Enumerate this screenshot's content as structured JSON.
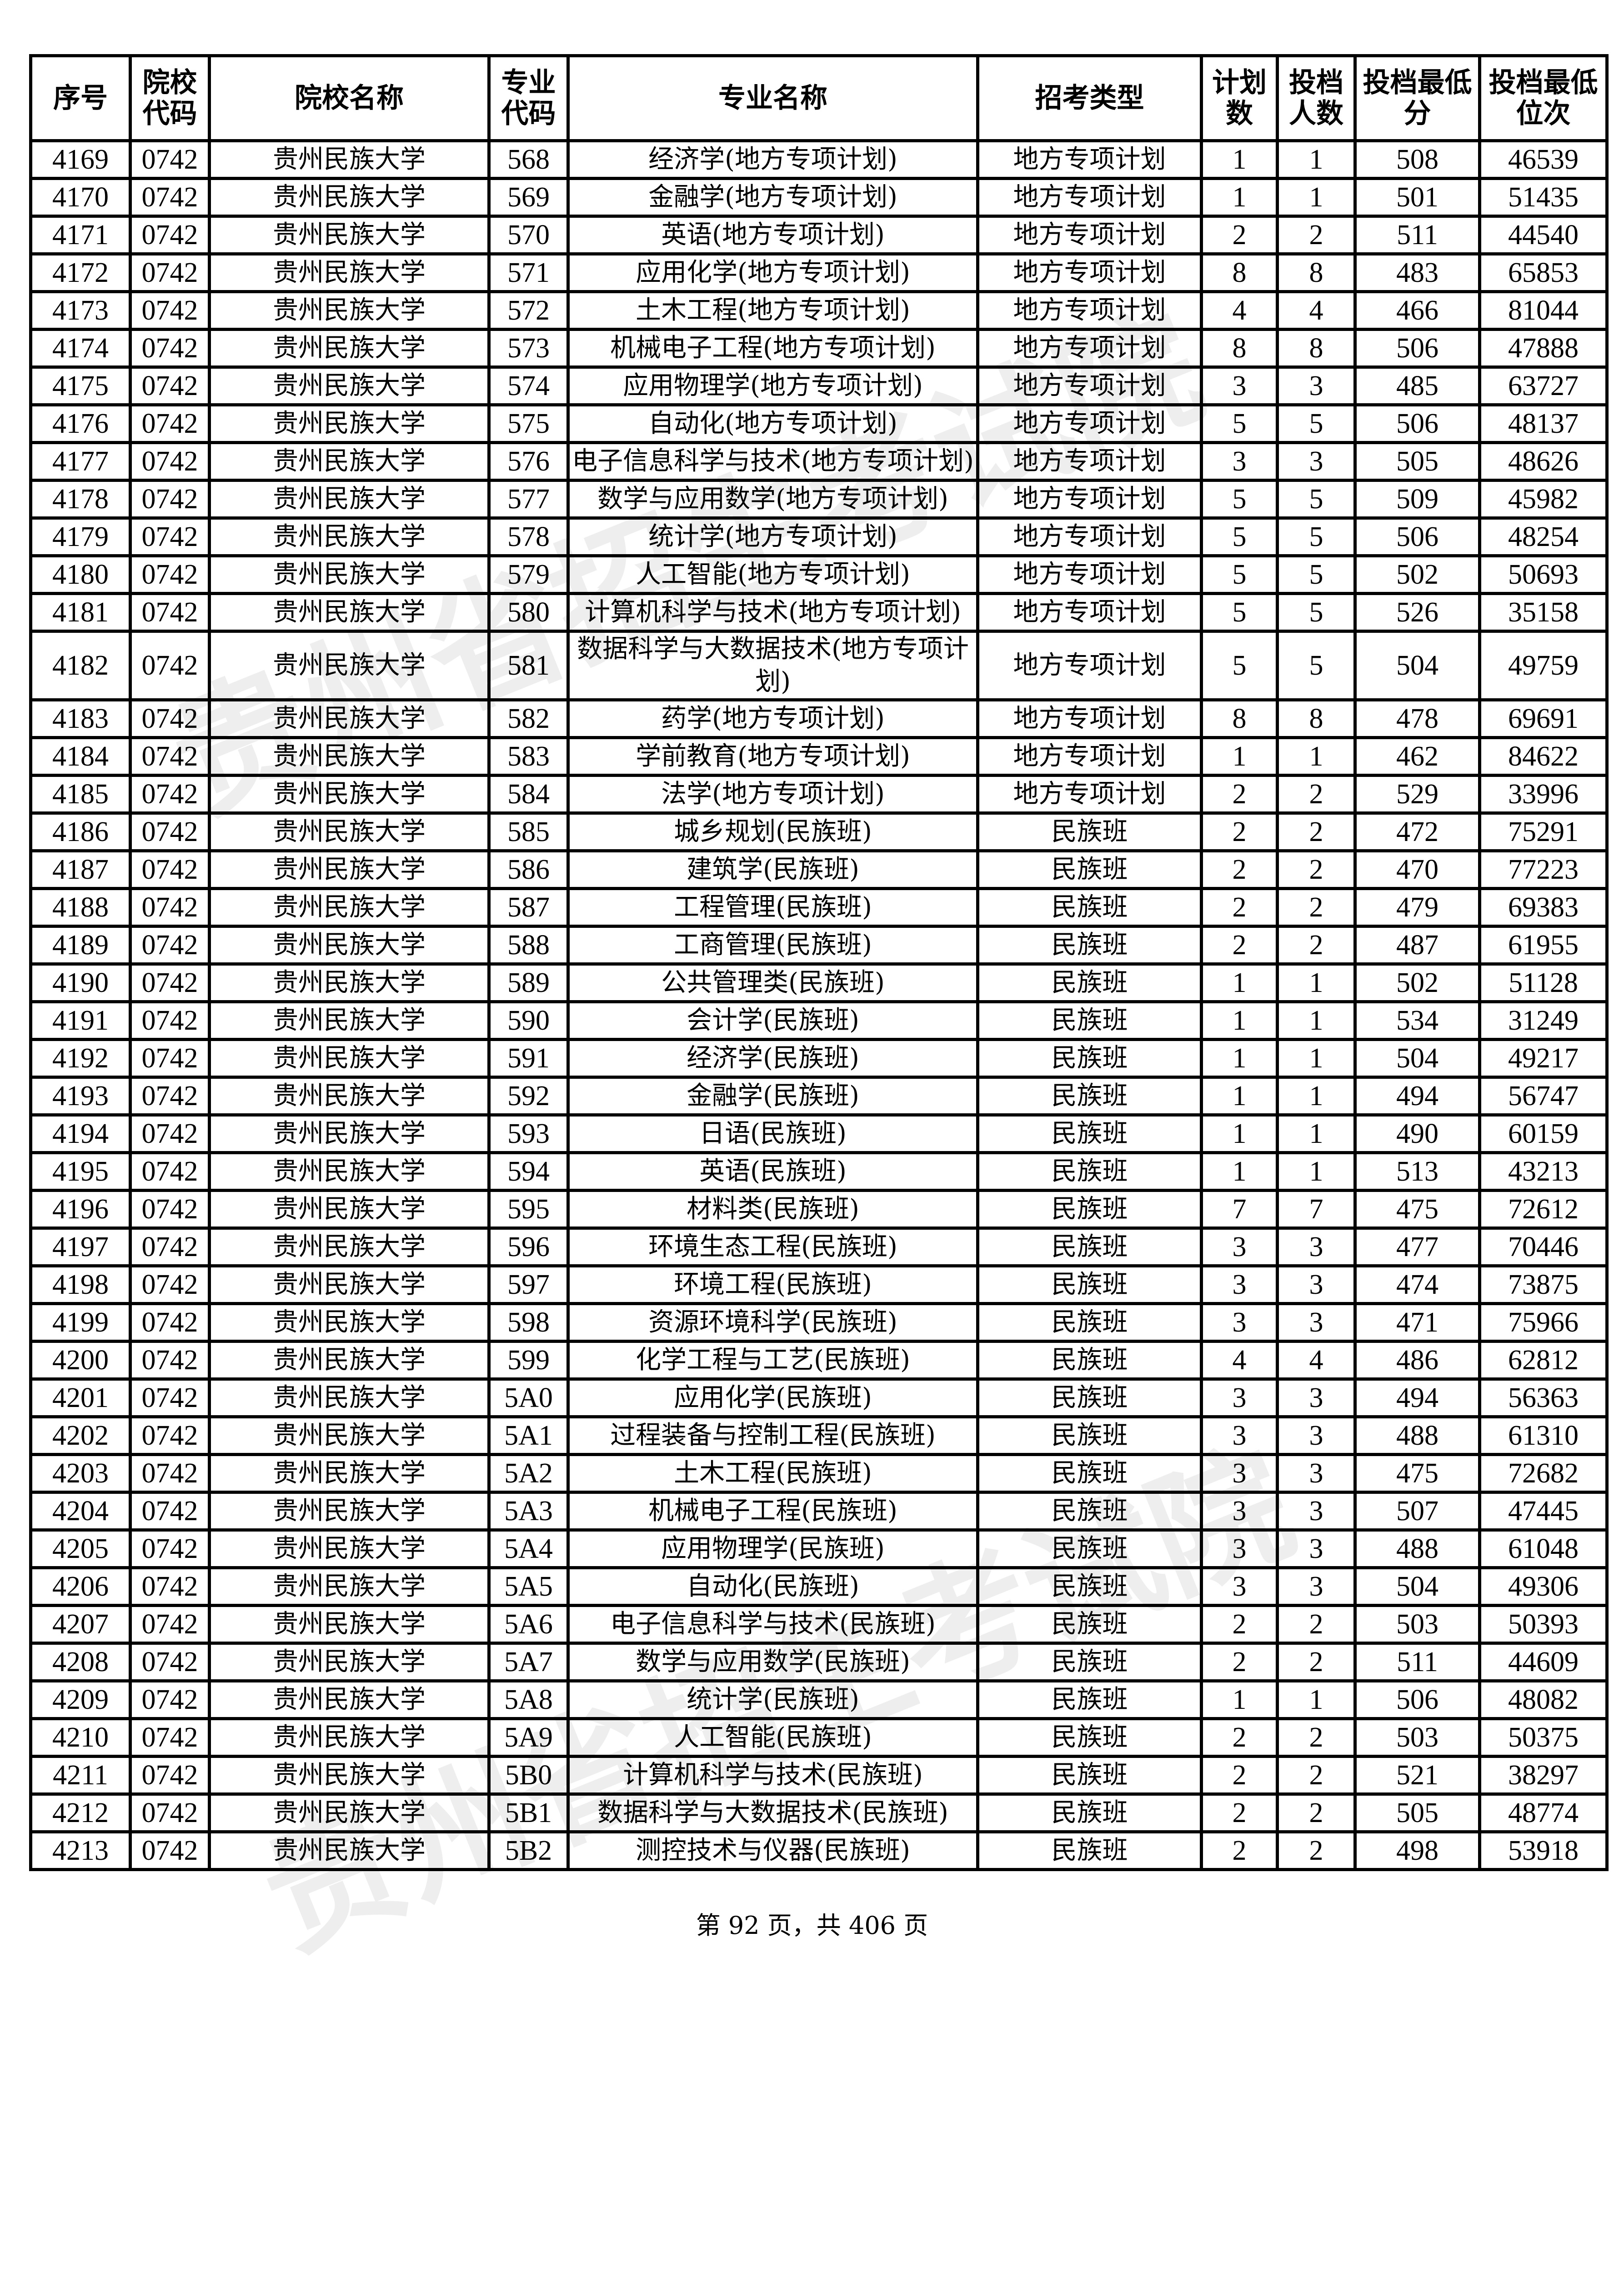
{
  "table": {
    "headers": [
      "序号",
      "院校代码",
      "院校名称",
      "专业代码",
      "专业名称",
      "招考类型",
      "计划数",
      "投档人数",
      "投档最低分",
      "投档最低位次"
    ],
    "rows": [
      [
        "4169",
        "0742",
        "贵州民族大学",
        "568",
        "经济学(地方专项计划)",
        "地方专项计划",
        "1",
        "1",
        "508",
        "46539"
      ],
      [
        "4170",
        "0742",
        "贵州民族大学",
        "569",
        "金融学(地方专项计划)",
        "地方专项计划",
        "1",
        "1",
        "501",
        "51435"
      ],
      [
        "4171",
        "0742",
        "贵州民族大学",
        "570",
        "英语(地方专项计划)",
        "地方专项计划",
        "2",
        "2",
        "511",
        "44540"
      ],
      [
        "4172",
        "0742",
        "贵州民族大学",
        "571",
        "应用化学(地方专项计划)",
        "地方专项计划",
        "8",
        "8",
        "483",
        "65853"
      ],
      [
        "4173",
        "0742",
        "贵州民族大学",
        "572",
        "土木工程(地方专项计划)",
        "地方专项计划",
        "4",
        "4",
        "466",
        "81044"
      ],
      [
        "4174",
        "0742",
        "贵州民族大学",
        "573",
        "机械电子工程(地方专项计划)",
        "地方专项计划",
        "8",
        "8",
        "506",
        "47888"
      ],
      [
        "4175",
        "0742",
        "贵州民族大学",
        "574",
        "应用物理学(地方专项计划)",
        "地方专项计划",
        "3",
        "3",
        "485",
        "63727"
      ],
      [
        "4176",
        "0742",
        "贵州民族大学",
        "575",
        "自动化(地方专项计划)",
        "地方专项计划",
        "5",
        "5",
        "506",
        "48137"
      ],
      [
        "4177",
        "0742",
        "贵州民族大学",
        "576",
        "电子信息科学与技术(地方专项计划)",
        "地方专项计划",
        "3",
        "3",
        "505",
        "48626"
      ],
      [
        "4178",
        "0742",
        "贵州民族大学",
        "577",
        "数学与应用数学(地方专项计划)",
        "地方专项计划",
        "5",
        "5",
        "509",
        "45982"
      ],
      [
        "4179",
        "0742",
        "贵州民族大学",
        "578",
        "统计学(地方专项计划)",
        "地方专项计划",
        "5",
        "5",
        "506",
        "48254"
      ],
      [
        "4180",
        "0742",
        "贵州民族大学",
        "579",
        "人工智能(地方专项计划)",
        "地方专项计划",
        "5",
        "5",
        "502",
        "50693"
      ],
      [
        "4181",
        "0742",
        "贵州民族大学",
        "580",
        "计算机科学与技术(地方专项计划)",
        "地方专项计划",
        "5",
        "5",
        "526",
        "35158"
      ],
      [
        "4182",
        "0742",
        "贵州民族大学",
        "581",
        "数据科学与大数据技术(地方专项计划)",
        "地方专项计划",
        "5",
        "5",
        "504",
        "49759"
      ],
      [
        "4183",
        "0742",
        "贵州民族大学",
        "582",
        "药学(地方专项计划)",
        "地方专项计划",
        "8",
        "8",
        "478",
        "69691"
      ],
      [
        "4184",
        "0742",
        "贵州民族大学",
        "583",
        "学前教育(地方专项计划)",
        "地方专项计划",
        "1",
        "1",
        "462",
        "84622"
      ],
      [
        "4185",
        "0742",
        "贵州民族大学",
        "584",
        "法学(地方专项计划)",
        "地方专项计划",
        "2",
        "2",
        "529",
        "33996"
      ],
      [
        "4186",
        "0742",
        "贵州民族大学",
        "585",
        "城乡规划(民族班)",
        "民族班",
        "2",
        "2",
        "472",
        "75291"
      ],
      [
        "4187",
        "0742",
        "贵州民族大学",
        "586",
        "建筑学(民族班)",
        "民族班",
        "2",
        "2",
        "470",
        "77223"
      ],
      [
        "4188",
        "0742",
        "贵州民族大学",
        "587",
        "工程管理(民族班)",
        "民族班",
        "2",
        "2",
        "479",
        "69383"
      ],
      [
        "4189",
        "0742",
        "贵州民族大学",
        "588",
        "工商管理(民族班)",
        "民族班",
        "2",
        "2",
        "487",
        "61955"
      ],
      [
        "4190",
        "0742",
        "贵州民族大学",
        "589",
        "公共管理类(民族班)",
        "民族班",
        "1",
        "1",
        "502",
        "51128"
      ],
      [
        "4191",
        "0742",
        "贵州民族大学",
        "590",
        "会计学(民族班)",
        "民族班",
        "1",
        "1",
        "534",
        "31249"
      ],
      [
        "4192",
        "0742",
        "贵州民族大学",
        "591",
        "经济学(民族班)",
        "民族班",
        "1",
        "1",
        "504",
        "49217"
      ],
      [
        "4193",
        "0742",
        "贵州民族大学",
        "592",
        "金融学(民族班)",
        "民族班",
        "1",
        "1",
        "494",
        "56747"
      ],
      [
        "4194",
        "0742",
        "贵州民族大学",
        "593",
        "日语(民族班)",
        "民族班",
        "1",
        "1",
        "490",
        "60159"
      ],
      [
        "4195",
        "0742",
        "贵州民族大学",
        "594",
        "英语(民族班)",
        "民族班",
        "1",
        "1",
        "513",
        "43213"
      ],
      [
        "4196",
        "0742",
        "贵州民族大学",
        "595",
        "材料类(民族班)",
        "民族班",
        "7",
        "7",
        "475",
        "72612"
      ],
      [
        "4197",
        "0742",
        "贵州民族大学",
        "596",
        "环境生态工程(民族班)",
        "民族班",
        "3",
        "3",
        "477",
        "70446"
      ],
      [
        "4198",
        "0742",
        "贵州民族大学",
        "597",
        "环境工程(民族班)",
        "民族班",
        "3",
        "3",
        "474",
        "73875"
      ],
      [
        "4199",
        "0742",
        "贵州民族大学",
        "598",
        "资源环境科学(民族班)",
        "民族班",
        "3",
        "3",
        "471",
        "75966"
      ],
      [
        "4200",
        "0742",
        "贵州民族大学",
        "599",
        "化学工程与工艺(民族班)",
        "民族班",
        "4",
        "4",
        "486",
        "62812"
      ],
      [
        "4201",
        "0742",
        "贵州民族大学",
        "5A0",
        "应用化学(民族班)",
        "民族班",
        "3",
        "3",
        "494",
        "56363"
      ],
      [
        "4202",
        "0742",
        "贵州民族大学",
        "5A1",
        "过程装备与控制工程(民族班)",
        "民族班",
        "3",
        "3",
        "488",
        "61310"
      ],
      [
        "4203",
        "0742",
        "贵州民族大学",
        "5A2",
        "土木工程(民族班)",
        "民族班",
        "3",
        "3",
        "475",
        "72682"
      ],
      [
        "4204",
        "0742",
        "贵州民族大学",
        "5A3",
        "机械电子工程(民族班)",
        "民族班",
        "3",
        "3",
        "507",
        "47445"
      ],
      [
        "4205",
        "0742",
        "贵州民族大学",
        "5A4",
        "应用物理学(民族班)",
        "民族班",
        "3",
        "3",
        "488",
        "61048"
      ],
      [
        "4206",
        "0742",
        "贵州民族大学",
        "5A5",
        "自动化(民族班)",
        "民族班",
        "3",
        "3",
        "504",
        "49306"
      ],
      [
        "4207",
        "0742",
        "贵州民族大学",
        "5A6",
        "电子信息科学与技术(民族班)",
        "民族班",
        "2",
        "2",
        "503",
        "50393"
      ],
      [
        "4208",
        "0742",
        "贵州民族大学",
        "5A7",
        "数学与应用数学(民族班)",
        "民族班",
        "2",
        "2",
        "511",
        "44609"
      ],
      [
        "4209",
        "0742",
        "贵州民族大学",
        "5A8",
        "统计学(民族班)",
        "民族班",
        "1",
        "1",
        "506",
        "48082"
      ],
      [
        "4210",
        "0742",
        "贵州民族大学",
        "5A9",
        "人工智能(民族班)",
        "民族班",
        "2",
        "2",
        "503",
        "50375"
      ],
      [
        "4211",
        "0742",
        "贵州民族大学",
        "5B0",
        "计算机科学与技术(民族班)",
        "民族班",
        "2",
        "2",
        "521",
        "38297"
      ],
      [
        "4212",
        "0742",
        "贵州民族大学",
        "5B1",
        "数据科学与大数据技术(民族班)",
        "民族班",
        "2",
        "2",
        "505",
        "48774"
      ],
      [
        "4213",
        "0742",
        "贵州民族大学",
        "5B2",
        "测控技术与仪器(民族班)",
        "民族班",
        "2",
        "2",
        "498",
        "53918"
      ]
    ]
  },
  "footer": {
    "page_text": "第 92 页，共 406 页"
  },
  "watermark": {
    "text": "贵州省招生考试院"
  }
}
